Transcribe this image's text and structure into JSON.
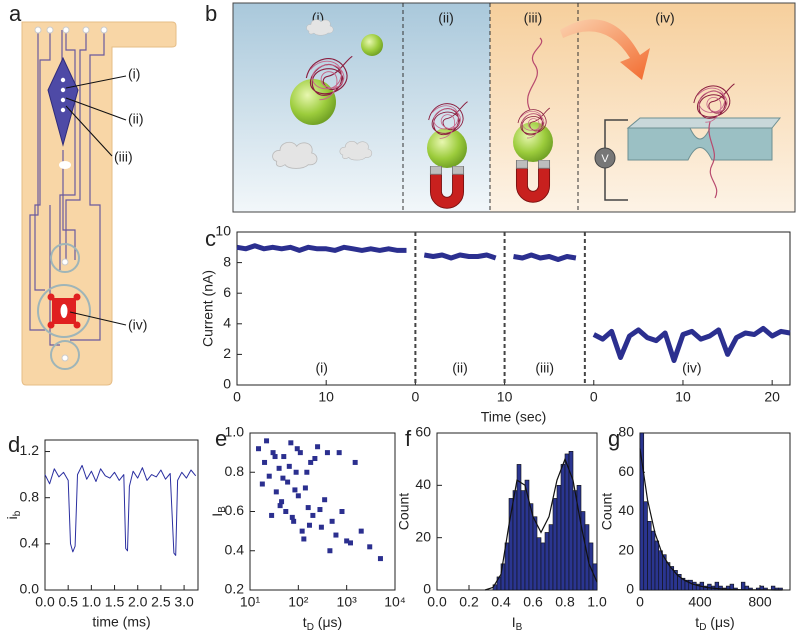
{
  "panels": {
    "a": {
      "label": "a",
      "callouts": [
        "(i)",
        "(ii)",
        "(iii)",
        "(iv)"
      ]
    },
    "b": {
      "label": "b",
      "sections": [
        "(i)",
        "(ii)",
        "(iii)",
        "(iv)"
      ],
      "voltage": "V"
    }
  },
  "chart_data": [
    {
      "type": "line",
      "label": "c",
      "ylabel": "Current (nA)",
      "xlabel": "Time (sec)",
      "xlim": [
        0,
        62
      ],
      "ylim": [
        0,
        10
      ],
      "xticks": [
        0,
        10,
        {
          "value": 20,
          "label": "0"
        },
        {
          "value": 30,
          "label": "10"
        },
        {
          "value": 40,
          "label": "0"
        },
        {
          "value": 50,
          "label": "10"
        },
        {
          "value": 60,
          "label": "20"
        }
      ],
      "yticks": [
        0,
        2,
        4,
        6,
        8,
        10
      ],
      "annotations": [
        "(i)",
        "(ii)",
        "(iii)",
        "(iv)"
      ],
      "x": [
        0,
        1,
        2,
        3,
        4,
        5,
        6,
        7,
        8,
        9,
        10,
        11,
        12,
        13,
        14,
        15,
        16,
        17,
        18,
        19,
        20,
        21,
        22,
        23,
        24,
        25,
        26,
        27,
        28,
        29,
        30,
        31,
        32,
        33,
        34,
        35,
        36,
        37,
        38,
        39,
        40,
        41,
        42,
        43,
        44,
        45,
        46,
        47,
        48,
        49,
        50,
        51,
        52,
        53,
        54,
        55,
        56,
        57,
        58,
        59,
        60,
        61,
        62
      ],
      "series": [
        {
          "color": "#2b2f8f",
          "values": [
            9.0,
            8.9,
            9.1,
            8.9,
            9.0,
            8.9,
            9.0,
            8.8,
            9.0,
            8.9,
            8.9,
            8.8,
            9.0,
            8.9,
            8.8,
            8.9,
            8.8,
            8.9,
            8.8,
            8.8,
            null,
            8.5,
            8.4,
            8.5,
            8.3,
            8.5,
            8.4,
            8.4,
            8.5,
            8.3,
            null,
            8.4,
            8.3,
            8.5,
            8.3,
            8.4,
            8.2,
            8.4,
            8.3,
            null,
            3.3,
            3.0,
            3.5,
            1.8,
            3.2,
            3.6,
            3.1,
            2.9,
            3.4,
            1.6,
            3.3,
            3.5,
            3.0,
            3.2,
            3.6,
            2.0,
            3.1,
            3.4,
            3.3,
            3.7,
            3.2,
            3.5,
            3.4
          ]
        }
      ]
    },
    {
      "type": "line",
      "label": "d",
      "ylabel": [
        "i",
        "b"
      ],
      "xlabel": "time (ms)",
      "xlim": [
        0,
        3.3
      ],
      "ylim": [
        0,
        1.3
      ],
      "xticks": [
        {
          "value": 0,
          "label": "0.0"
        },
        0.5,
        {
          "value": 1,
          "label": "1.0"
        },
        1.5,
        {
          "value": 2,
          "label": "2.0"
        },
        2.5,
        {
          "value": 3,
          "label": "3.0"
        }
      ],
      "yticks": [
        {
          "value": 0,
          "label": "0.0"
        },
        0.4,
        0.8,
        1.2
      ],
      "x": [
        0,
        0.1,
        0.2,
        0.3,
        0.4,
        0.5,
        0.55,
        0.6,
        0.65,
        0.7,
        0.8,
        0.9,
        1.0,
        1.1,
        1.2,
        1.3,
        1.4,
        1.5,
        1.6,
        1.7,
        1.74,
        1.78,
        1.82,
        1.9,
        2.0,
        2.1,
        2.2,
        2.3,
        2.4,
        2.5,
        2.6,
        2.7,
        2.78,
        2.82,
        2.86,
        2.95,
        3.05,
        3.15,
        3.25
      ],
      "series": [
        {
          "color": "#2b2fa0",
          "values": [
            1.0,
            0.92,
            1.05,
            0.98,
            1.02,
            0.95,
            0.4,
            0.33,
            0.38,
            1.0,
            1.08,
            0.96,
            1.03,
            0.94,
            1.05,
            0.99,
            0.97,
            1.02,
            0.95,
            1.0,
            0.36,
            0.34,
            0.9,
            1.03,
            0.97,
            1.06,
            0.95,
            1.0,
            0.98,
            1.04,
            0.96,
            1.01,
            0.32,
            0.3,
            0.95,
            1.02,
            0.97,
            1.04,
            0.99
          ]
        }
      ]
    },
    {
      "type": "scatter",
      "label": "e",
      "ylabel": [
        "I",
        "B"
      ],
      "xlabel": [
        "t",
        "D",
        " (μs)"
      ],
      "log_x": true,
      "xlim": [
        10,
        10000
      ],
      "ylim": [
        0.2,
        1.0
      ],
      "color": "#2b2f8f",
      "xticks": [
        {
          "value": 10,
          "label": "10¹"
        },
        {
          "value": 100,
          "label": "10²"
        },
        {
          "value": 1000,
          "label": "10³"
        },
        {
          "value": 10000,
          "label": "10⁴"
        }
      ],
      "yticks": [
        0.2,
        0.4,
        0.6,
        0.8,
        {
          "value": 1,
          "label": "1.0"
        }
      ],
      "x": [
        15,
        20,
        25,
        30,
        35,
        40,
        45,
        50,
        55,
        60,
        70,
        80,
        90,
        100,
        110,
        120,
        140,
        160,
        180,
        200,
        250,
        300,
        350,
        400,
        500,
        600,
        800,
        1000,
        1500,
        2000,
        3000,
        5000,
        18,
        22,
        28,
        33,
        42,
        48,
        65,
        75,
        85,
        95,
        130,
        150,
        170,
        220,
        280,
        450,
        700,
        1200
      ],
      "values": [
        0.92,
        0.85,
        0.78,
        0.9,
        0.7,
        0.82,
        0.65,
        0.88,
        0.6,
        0.75,
        0.95,
        0.55,
        0.8,
        0.68,
        0.9,
        0.5,
        0.72,
        0.62,
        0.85,
        0.58,
        0.93,
        0.52,
        0.66,
        0.9,
        0.55,
        0.48,
        0.6,
        0.45,
        0.85,
        0.5,
        0.42,
        0.36,
        0.74,
        0.96,
        0.58,
        0.88,
        0.63,
        0.77,
        0.83,
        0.57,
        0.71,
        0.92,
        0.46,
        0.8,
        0.53,
        0.87,
        0.61,
        0.4,
        0.9,
        0.44
      ]
    },
    {
      "type": "histogram",
      "label": "f",
      "ylabel": "Count",
      "xlabel": [
        "I",
        "B"
      ],
      "xlim": [
        0,
        1
      ],
      "ylim": [
        0,
        60
      ],
      "color": "#2a3590",
      "xticks": [
        {
          "value": 0,
          "label": "0.0"
        },
        0.2,
        0.4,
        0.6,
        0.8,
        {
          "value": 1,
          "label": "1.0"
        }
      ],
      "yticks": [
        0,
        20,
        40,
        60
      ],
      "bins": [
        0.35,
        0.375,
        0.4,
        0.425,
        0.45,
        0.475,
        0.5,
        0.525,
        0.55,
        0.575,
        0.6,
        0.625,
        0.65,
        0.675,
        0.7,
        0.725,
        0.75,
        0.775,
        0.8,
        0.825,
        0.85,
        0.875,
        0.9,
        0.925,
        0.95,
        0.975,
        1.0
      ],
      "values": [
        2,
        5,
        10,
        18,
        35,
        38,
        48,
        38,
        42,
        33,
        28,
        20,
        18,
        22,
        25,
        35,
        40,
        48,
        52,
        53,
        38,
        40,
        30,
        25,
        18,
        10
      ],
      "fit": {
        "x": [
          0.3,
          0.35,
          0.4,
          0.45,
          0.5,
          0.55,
          0.6,
          0.65,
          0.7,
          0.75,
          0.8,
          0.85,
          0.9,
          0.95,
          1.0
        ],
        "values": [
          0,
          1,
          6,
          25,
          42,
          40,
          28,
          22,
          28,
          42,
          50,
          42,
          25,
          10,
          3
        ]
      }
    },
    {
      "type": "histogram",
      "label": "g",
      "ylabel": "Count",
      "xlabel": [
        "t",
        "D",
        " (μs)"
      ],
      "xlim": [
        0,
        1000
      ],
      "ylim": [
        0,
        80
      ],
      "color": "#2a3590",
      "xticks": [
        0,
        400,
        800
      ],
      "yticks": [
        0,
        20,
        40,
        60,
        80
      ],
      "bins": [
        0,
        25,
        50,
        75,
        100,
        125,
        150,
        175,
        200,
        225,
        250,
        275,
        300,
        325,
        350,
        375,
        400,
        425,
        450,
        475,
        500,
        525,
        550,
        575,
        600,
        625,
        650,
        675,
        700,
        725,
        750,
        775,
        800,
        825,
        850,
        875,
        900,
        925,
        950
      ],
      "values": [
        80,
        45,
        35,
        30,
        25,
        20,
        18,
        14,
        12,
        10,
        8,
        6,
        5,
        5,
        4,
        3,
        4,
        2,
        3,
        2,
        4,
        2,
        1,
        2,
        3,
        1,
        0,
        4,
        2,
        1,
        0,
        1,
        2,
        1,
        0,
        2,
        1,
        1
      ],
      "fit": {
        "x": [
          0,
          50,
          100,
          150,
          200,
          250,
          300,
          350,
          400,
          450,
          500,
          550,
          600,
          650,
          700,
          750,
          800,
          850,
          900,
          950
        ],
        "values": [
          72,
          46,
          29,
          18,
          12,
          7.5,
          4.8,
          3,
          2,
          1.2,
          0.8,
          0.5,
          0.3,
          0.2,
          0.1,
          0.1,
          0.05,
          0.03,
          0.02,
          0.01
        ]
      }
    }
  ]
}
